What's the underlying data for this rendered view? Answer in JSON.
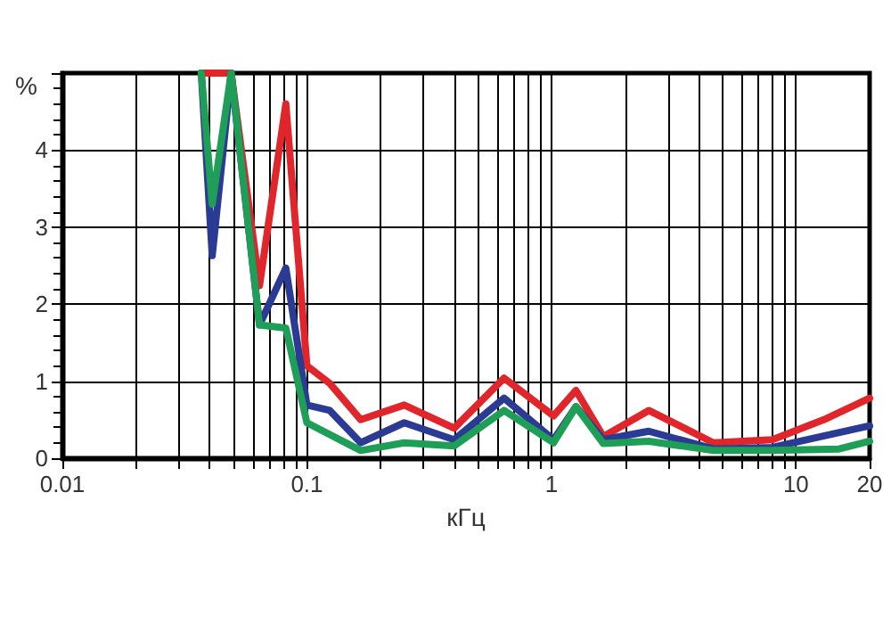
{
  "chart_data": {
    "type": "line",
    "xlabel": "кГц",
    "ylabel": "%",
    "log": "x",
    "grid": true,
    "marker": "none",
    "line_style": "solid",
    "xlim": [
      0.01,
      20
    ],
    "ylim": [
      0,
      5
    ],
    "xticks": [
      0.01,
      {
        "value": 0.02,
        "label": null
      },
      {
        "value": 0.03,
        "label": null
      },
      {
        "value": 0.04,
        "label": null
      },
      {
        "value": 0.05,
        "label": null
      },
      {
        "value": 0.06,
        "label": null
      },
      {
        "value": 0.07,
        "label": null
      },
      {
        "value": 0.08,
        "label": null
      },
      {
        "value": 0.09,
        "label": null
      },
      0.1,
      {
        "value": 0.2,
        "label": null
      },
      {
        "value": 0.3,
        "label": null
      },
      {
        "value": 0.4,
        "label": null
      },
      {
        "value": 0.5,
        "label": null
      },
      {
        "value": 0.6,
        "label": null
      },
      {
        "value": 0.7,
        "label": null
      },
      {
        "value": 0.8,
        "label": null
      },
      {
        "value": 0.9,
        "label": null
      },
      1,
      {
        "value": 2,
        "label": null
      },
      {
        "value": 3,
        "label": null
      },
      {
        "value": 4,
        "label": null
      },
      {
        "value": 5,
        "label": null
      },
      {
        "value": 6,
        "label": null
      },
      {
        "value": 7,
        "label": null
      },
      {
        "value": 8,
        "label": null
      },
      {
        "value": 9,
        "label": null
      },
      10,
      20
    ],
    "yticks": [
      0,
      1,
      2,
      3,
      4,
      {
        "value": 5,
        "label": null
      }
    ],
    "series": [
      {
        "color": "#e0262b",
        "x": [
          0.037,
          0.049,
          0.064,
          0.082,
          0.1,
          0.124,
          0.166,
          0.25,
          0.4,
          0.64,
          1.02,
          1.26,
          1.63,
          2.5,
          4.6,
          8,
          13,
          20
        ],
        "values": [
          5,
          5,
          2.24,
          4.6,
          1.2,
          0.97,
          0.5,
          0.69,
          0.39,
          1.04,
          0.55,
          0.88,
          0.28,
          0.62,
          0.2,
          0.24,
          0.5,
          0.78
        ]
      },
      {
        "color": "#2b3a92",
        "x": [
          0.037,
          0.041,
          0.049,
          0.064,
          0.082,
          0.1,
          0.124,
          0.166,
          0.25,
          0.4,
          0.64,
          1.02,
          1.26,
          1.63,
          2.5,
          4.6,
          8,
          20
        ],
        "values": [
          5,
          2.63,
          5,
          1.73,
          2.47,
          0.69,
          0.62,
          0.2,
          0.46,
          0.24,
          0.78,
          0.24,
          0.67,
          0.24,
          0.35,
          0.12,
          0.14,
          0.42
        ]
      },
      {
        "color": "#1f9e57",
        "x": [
          0.037,
          0.041,
          0.049,
          0.064,
          0.082,
          0.1,
          0.166,
          0.25,
          0.4,
          0.64,
          1.02,
          1.26,
          1.63,
          2.5,
          4.6,
          8,
          15,
          20
        ],
        "values": [
          5,
          3.3,
          5,
          1.73,
          1.69,
          0.46,
          0.1,
          0.2,
          0.16,
          0.62,
          0.2,
          0.67,
          0.19,
          0.22,
          0.1,
          0.1,
          0.12,
          0.22
        ]
      }
    ]
  }
}
